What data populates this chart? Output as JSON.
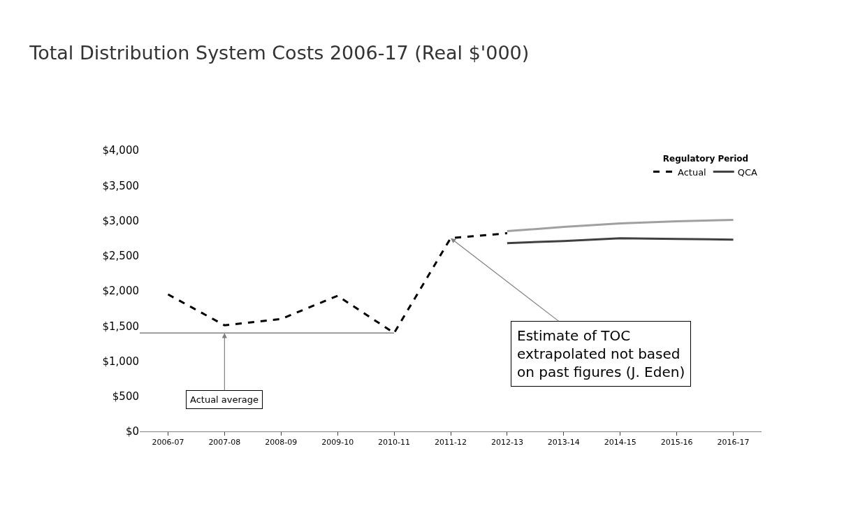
{
  "chart_data": {
    "type": "line",
    "title": "Total Distribution System Costs 2006-17 (Real $'000)",
    "legend_title": "Regulatory Period",
    "categories": [
      "2006-07",
      "2007-08",
      "2008-09",
      "2009-10",
      "2010-11",
      "2011-12",
      "2012-13",
      "2013-14",
      "2014-15",
      "2015-16",
      "2016-17"
    ],
    "series": [
      {
        "name": "Actual",
        "color": "#000000",
        "line_style": "dashed",
        "values": [
          1950,
          1510,
          1600,
          1930,
          1400,
          2750,
          2820,
          null,
          null,
          null,
          null
        ]
      },
      {
        "color": "#a0a0a0",
        "line_style": "solid",
        "values": [
          null,
          null,
          null,
          null,
          null,
          null,
          2850,
          2910,
          2960,
          2990,
          3010
        ]
      },
      {
        "name": "QCA",
        "color": "#404040",
        "line_style": "solid",
        "values": [
          null,
          null,
          null,
          null,
          null,
          null,
          2680,
          2710,
          2750,
          2740,
          2730
        ]
      }
    ],
    "ylim": [
      0,
      4000
    ],
    "yticks": [
      {
        "value": 0,
        "label": "$0"
      },
      {
        "value": 500,
        "label": "$500"
      },
      {
        "value": 1000,
        "label": "$1,000"
      },
      {
        "value": 1500,
        "label": "$1,500"
      },
      {
        "value": 2000,
        "label": "$2,000"
      },
      {
        "value": 2500,
        "label": "$2,500"
      },
      {
        "value": 3000,
        "label": "$3,000"
      },
      {
        "value": 3500,
        "label": "$3,500"
      },
      {
        "value": 4000,
        "label": "$4,000"
      }
    ],
    "ref_lines": [
      {
        "axis": "y",
        "value": 1400,
        "color": "#808080"
      }
    ],
    "annotations": [
      {
        "text": "Actual average",
        "x": "2007-08",
        "y": 1400
      },
      {
        "text": "Estimate of TOC\nextrapolated not based\non past figures (J. Eden)",
        "x": "2011-12",
        "y": 2750
      }
    ],
    "legend": "top right",
    "marker": "none"
  }
}
